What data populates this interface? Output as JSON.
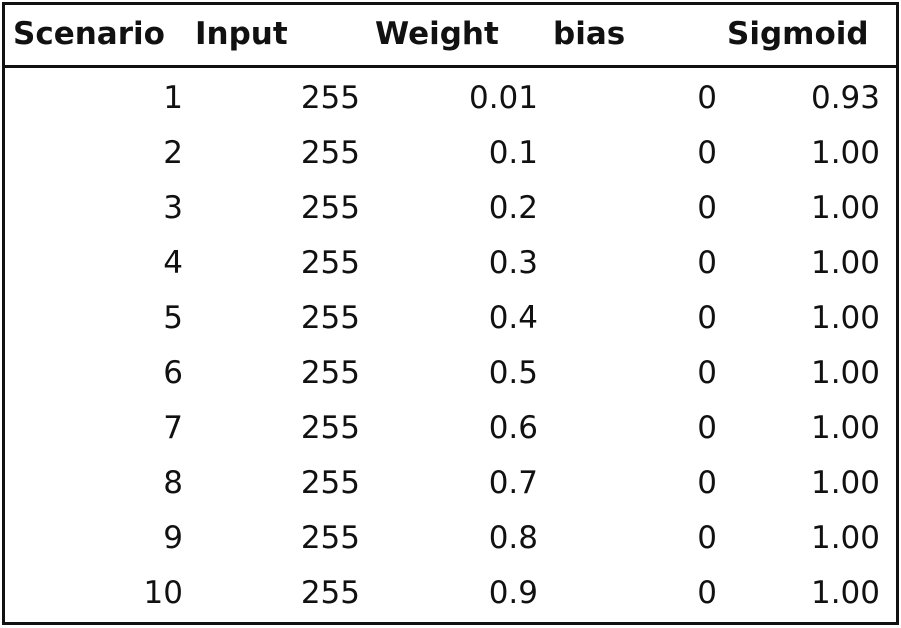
{
  "table": {
    "headers": {
      "scenario": "Scenario",
      "input": "Input",
      "weight": "Weight",
      "bias": "bias",
      "sigmoid": "Sigmoid"
    },
    "rows": [
      {
        "scenario": "1",
        "input": "255",
        "weight": "0.01",
        "bias": "0",
        "sigmoid": "0.93"
      },
      {
        "scenario": "2",
        "input": "255",
        "weight": "0.1",
        "bias": "0",
        "sigmoid": "1.00"
      },
      {
        "scenario": "3",
        "input": "255",
        "weight": "0.2",
        "bias": "0",
        "sigmoid": "1.00"
      },
      {
        "scenario": "4",
        "input": "255",
        "weight": "0.3",
        "bias": "0",
        "sigmoid": "1.00"
      },
      {
        "scenario": "5",
        "input": "255",
        "weight": "0.4",
        "bias": "0",
        "sigmoid": "1.00"
      },
      {
        "scenario": "6",
        "input": "255",
        "weight": "0.5",
        "bias": "0",
        "sigmoid": "1.00"
      },
      {
        "scenario": "7",
        "input": "255",
        "weight": "0.6",
        "bias": "0",
        "sigmoid": "1.00"
      },
      {
        "scenario": "8",
        "input": "255",
        "weight": "0.7",
        "bias": "0",
        "sigmoid": "1.00"
      },
      {
        "scenario": "9",
        "input": "255",
        "weight": "0.8",
        "bias": "0",
        "sigmoid": "1.00"
      },
      {
        "scenario": "10",
        "input": "255",
        "weight": "0.9",
        "bias": "0",
        "sigmoid": "1.00"
      }
    ]
  }
}
